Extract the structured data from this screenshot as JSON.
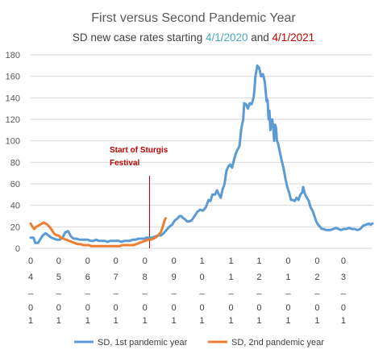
{
  "chart_data": {
    "type": "line",
    "title": "First versus Second Pandemic Year",
    "subtitle": {
      "prefix": "SD new case rates starting ",
      "date1": "4/1/2020",
      "mid": " and ",
      "date2": "4/1/2021"
    },
    "ylim": [
      0,
      180
    ],
    "yticks": [
      0,
      20,
      40,
      60,
      80,
      100,
      120,
      140,
      160,
      180
    ],
    "xlim": [
      0,
      365
    ],
    "x_tick_labels": [
      {
        "x": 0,
        "month": [
          "0",
          "4"
        ],
        "dash": "_",
        "day": [
          "0",
          "1"
        ]
      },
      {
        "x": 30,
        "month": [
          "0",
          "5"
        ],
        "dash": "_",
        "day": [
          "0",
          "1"
        ]
      },
      {
        "x": 61,
        "month": [
          "0",
          "6"
        ],
        "dash": "_",
        "day": [
          "0",
          "1"
        ]
      },
      {
        "x": 91,
        "month": [
          "0",
          "7"
        ],
        "dash": "_",
        "day": [
          "0",
          "1"
        ]
      },
      {
        "x": 122,
        "month": [
          "0",
          "8"
        ],
        "dash": "_",
        "day": [
          "0",
          "1"
        ]
      },
      {
        "x": 153,
        "month": [
          "0",
          "9"
        ],
        "dash": "_",
        "day": [
          "0",
          "1"
        ]
      },
      {
        "x": 183,
        "month": [
          "1",
          "0"
        ],
        "dash": "_",
        "day": [
          "0",
          "1"
        ]
      },
      {
        "x": 214,
        "month": [
          "1",
          "1"
        ],
        "dash": "_",
        "day": [
          "0",
          "1"
        ]
      },
      {
        "x": 244,
        "month": [
          "1",
          "2"
        ],
        "dash": "_",
        "day": [
          "0",
          "1"
        ]
      },
      {
        "x": 275,
        "month": [
          "0",
          "1"
        ],
        "dash": "_",
        "day": [
          "0",
          "1"
        ]
      },
      {
        "x": 306,
        "month": [
          "0",
          "2"
        ],
        "dash": "_",
        "day": [
          "0",
          "1"
        ]
      },
      {
        "x": 334,
        "month": [
          "0",
          "3"
        ],
        "dash": "_",
        "day": [
          "0",
          "1"
        ]
      }
    ],
    "grid": "horizontal",
    "legend_position": "bottom",
    "annotation": {
      "lines": [
        "Start of Sturgis",
        "Festival"
      ],
      "x": 127
    },
    "series": [
      {
        "name": "SD, 1st pandemic year",
        "color": "#5b9bd5",
        "points": [
          [
            0,
            10
          ],
          [
            3,
            10
          ],
          [
            5,
            5
          ],
          [
            8,
            5
          ],
          [
            10,
            8
          ],
          [
            13,
            12
          ],
          [
            16,
            14
          ],
          [
            19,
            12
          ],
          [
            22,
            10
          ],
          [
            25,
            9
          ],
          [
            28,
            8
          ],
          [
            31,
            8
          ],
          [
            34,
            10
          ],
          [
            37,
            15
          ],
          [
            40,
            16
          ],
          [
            43,
            11
          ],
          [
            46,
            9
          ],
          [
            49,
            9
          ],
          [
            52,
            8
          ],
          [
            55,
            8
          ],
          [
            58,
            8
          ],
          [
            61,
            8
          ],
          [
            64,
            7
          ],
          [
            67,
            7
          ],
          [
            70,
            8
          ],
          [
            73,
            7
          ],
          [
            76,
            7
          ],
          [
            79,
            7
          ],
          [
            82,
            6
          ],
          [
            85,
            7
          ],
          [
            88,
            7
          ],
          [
            91,
            7
          ],
          [
            94,
            7
          ],
          [
            97,
            6
          ],
          [
            100,
            7
          ],
          [
            103,
            7
          ],
          [
            106,
            7
          ],
          [
            109,
            8
          ],
          [
            112,
            8
          ],
          [
            115,
            9
          ],
          [
            118,
            9
          ],
          [
            121,
            9
          ],
          [
            124,
            10
          ],
          [
            127,
            10
          ],
          [
            130,
            10
          ],
          [
            133,
            11
          ],
          [
            136,
            12
          ],
          [
            139,
            12
          ],
          [
            142,
            14
          ],
          [
            145,
            17
          ],
          [
            148,
            20
          ],
          [
            151,
            22
          ],
          [
            154,
            26
          ],
          [
            157,
            28
          ],
          [
            159,
            30
          ],
          [
            161,
            30
          ],
          [
            163,
            28
          ],
          [
            165,
            27
          ],
          [
            167,
            25
          ],
          [
            169,
            25
          ],
          [
            172,
            26
          ],
          [
            175,
            30
          ],
          [
            178,
            34
          ],
          [
            181,
            36
          ],
          [
            184,
            35
          ],
          [
            187,
            38
          ],
          [
            190,
            45
          ],
          [
            192,
            44
          ],
          [
            194,
            50
          ],
          [
            197,
            50
          ],
          [
            199,
            54
          ],
          [
            201,
            50
          ],
          [
            203,
            47
          ],
          [
            205,
            55
          ],
          [
            207,
            60
          ],
          [
            209,
            72
          ],
          [
            211,
            76
          ],
          [
            213,
            78
          ],
          [
            215,
            75
          ],
          [
            217,
            82
          ],
          [
            219,
            88
          ],
          [
            221,
            92
          ],
          [
            223,
            95
          ],
          [
            225,
            112
          ],
          [
            227,
            120
          ],
          [
            228,
            135
          ],
          [
            230,
            134
          ],
          [
            232,
            130
          ],
          [
            234,
            135
          ],
          [
            236,
            134
          ],
          [
            238,
            140
          ],
          [
            239,
            148
          ],
          [
            240,
            160
          ],
          [
            241,
            165
          ],
          [
            242,
            170
          ],
          [
            244,
            168
          ],
          [
            246,
            160
          ],
          [
            248,
            162
          ],
          [
            250,
            155
          ],
          [
            252,
            137
          ],
          [
            253,
            138
          ],
          [
            254,
            120
          ],
          [
            255,
            128
          ],
          [
            256,
            110
          ],
          [
            257,
            118
          ],
          [
            258,
            120
          ],
          [
            259,
            112
          ],
          [
            260,
            100
          ],
          [
            261,
            115
          ],
          [
            262,
            112
          ],
          [
            263,
            100
          ],
          [
            264,
            98
          ],
          [
            266,
            90
          ],
          [
            268,
            82
          ],
          [
            270,
            75
          ],
          [
            272,
            65
          ],
          [
            274,
            57
          ],
          [
            276,
            52
          ],
          [
            278,
            45
          ],
          [
            280,
            45
          ],
          [
            282,
            44
          ],
          [
            284,
            47
          ],
          [
            286,
            45
          ],
          [
            288,
            50
          ],
          [
            290,
            52
          ],
          [
            291,
            57
          ],
          [
            293,
            50
          ],
          [
            295,
            47
          ],
          [
            297,
            44
          ],
          [
            299,
            38
          ],
          [
            301,
            35
          ],
          [
            303,
            30
          ],
          [
            305,
            25
          ],
          [
            307,
            22
          ],
          [
            309,
            20
          ],
          [
            311,
            18
          ],
          [
            313,
            18
          ],
          [
            315,
            17
          ],
          [
            317,
            17
          ],
          [
            320,
            17
          ],
          [
            323,
            18
          ],
          [
            326,
            19
          ],
          [
            329,
            18
          ],
          [
            331,
            17
          ],
          [
            334,
            18
          ],
          [
            337,
            18
          ],
          [
            340,
            19
          ],
          [
            343,
            18
          ],
          [
            346,
            18
          ],
          [
            349,
            17
          ],
          [
            352,
            18
          ],
          [
            355,
            21
          ],
          [
            358,
            22
          ],
          [
            361,
            23
          ],
          [
            363,
            22
          ],
          [
            365,
            23
          ]
        ]
      },
      {
        "name": "SD, 2nd pandemic year",
        "color": "#ed7d31",
        "points": [
          [
            0,
            23
          ],
          [
            2,
            20
          ],
          [
            4,
            18
          ],
          [
            6,
            20
          ],
          [
            8,
            21
          ],
          [
            10,
            22
          ],
          [
            12,
            23
          ],
          [
            14,
            24
          ],
          [
            16,
            23
          ],
          [
            18,
            22
          ],
          [
            20,
            20
          ],
          [
            22,
            18
          ],
          [
            24,
            15
          ],
          [
            26,
            13
          ],
          [
            28,
            12
          ],
          [
            30,
            12
          ],
          [
            32,
            10
          ],
          [
            35,
            9
          ],
          [
            38,
            8
          ],
          [
            41,
            7
          ],
          [
            44,
            6
          ],
          [
            47,
            5
          ],
          [
            50,
            4
          ],
          [
            53,
            4
          ],
          [
            56,
            3
          ],
          [
            59,
            3
          ],
          [
            62,
            3
          ],
          [
            65,
            2
          ],
          [
            68,
            2
          ],
          [
            71,
            2
          ],
          [
            74,
            2
          ],
          [
            77,
            2
          ],
          [
            80,
            2
          ],
          [
            83,
            2
          ],
          [
            86,
            2
          ],
          [
            89,
            2
          ],
          [
            92,
            2
          ],
          [
            95,
            2
          ],
          [
            98,
            3
          ],
          [
            101,
            3
          ],
          [
            104,
            3
          ],
          [
            107,
            3
          ],
          [
            110,
            3
          ],
          [
            113,
            4
          ],
          [
            116,
            5
          ],
          [
            119,
            6
          ],
          [
            122,
            7
          ],
          [
            125,
            8
          ],
          [
            128,
            8
          ],
          [
            131,
            9
          ],
          [
            133,
            10
          ],
          [
            135,
            11
          ],
          [
            137,
            13
          ],
          [
            139,
            15
          ],
          [
            141,
            20
          ],
          [
            142,
            23
          ],
          [
            143,
            26
          ],
          [
            144,
            28
          ]
        ]
      }
    ]
  }
}
